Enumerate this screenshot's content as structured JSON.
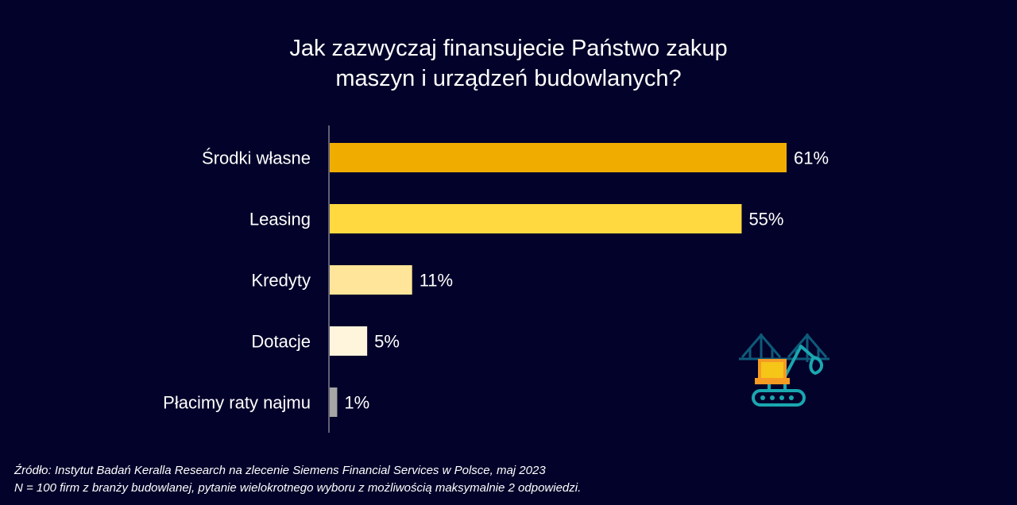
{
  "chart_data": {
    "type": "bar",
    "orientation": "horizontal",
    "title_lines": [
      "Jak zazwyczaj finansujecie Państwo zakup",
      "maszyn i urządzeń budowlanych?"
    ],
    "categories": [
      "Środki własne",
      "Leasing",
      "Kredyty",
      "Dotacje",
      "Płacimy raty najmu"
    ],
    "values": [
      61,
      55,
      11,
      5,
      1
    ],
    "value_labels": [
      "61%",
      "55%",
      "11%",
      "5%",
      "1%"
    ],
    "colors": [
      "#f0ad00",
      "#ffd93f",
      "#ffe599",
      "#fff5dc",
      "#a6a6a6"
    ],
    "xlim": [
      0,
      100
    ],
    "grid": false,
    "legend": "none"
  },
  "footer": {
    "source": "Źródło: Instytut Badań Keralla Research na zlecenie Siemens Financial Services w Polsce, maj 2023",
    "note": "N = 100 firm z branży budowlanej, pytanie wielokrotnego wyboru z możliwością maksymalnie 2 odpowiedzi."
  },
  "illustration": {
    "icon": "excavator-bridge-icon",
    "colors": [
      "#1aa7b0",
      "#f59a23",
      "#f5c518",
      "#0e5a7a"
    ]
  }
}
